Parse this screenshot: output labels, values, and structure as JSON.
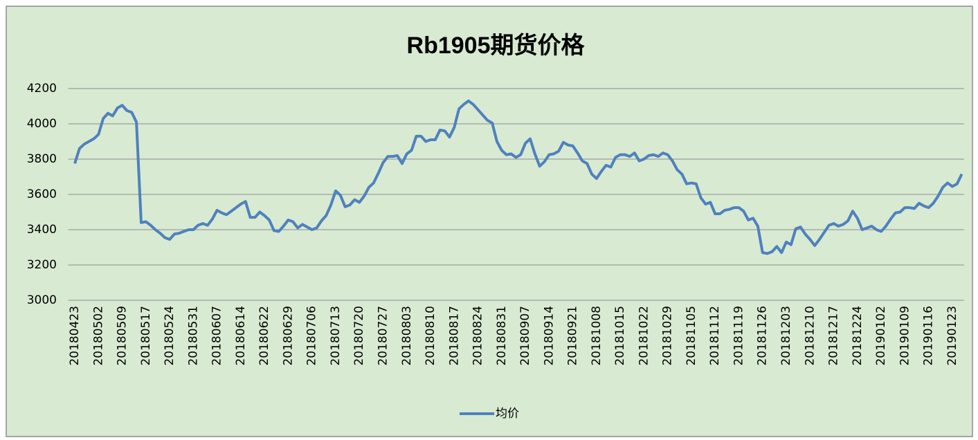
{
  "chart_data": {
    "type": "line",
    "title": "Rb1905期货价格",
    "categories": [
      "20180423",
      null,
      null,
      null,
      null,
      "20180502",
      null,
      null,
      null,
      null,
      "20180509",
      null,
      null,
      null,
      null,
      "20180517",
      null,
      null,
      null,
      null,
      "20180524",
      null,
      null,
      null,
      null,
      "20180531",
      null,
      null,
      null,
      null,
      "20180607",
      null,
      null,
      null,
      null,
      "20180614",
      null,
      null,
      null,
      null,
      "20180622",
      null,
      null,
      null,
      null,
      "20180629",
      null,
      null,
      null,
      null,
      "20180706",
      null,
      null,
      null,
      null,
      "20180713",
      null,
      null,
      null,
      null,
      "20180720",
      null,
      null,
      null,
      null,
      "20180727",
      null,
      null,
      null,
      null,
      "20180803",
      null,
      null,
      null,
      null,
      "20180810",
      null,
      null,
      null,
      null,
      "20180817",
      null,
      null,
      null,
      null,
      "20180824",
      null,
      null,
      null,
      null,
      "20180831",
      null,
      null,
      null,
      null,
      "20180907",
      null,
      null,
      null,
      null,
      "20180914",
      null,
      null,
      null,
      null,
      "20180921",
      null,
      null,
      null,
      null,
      "20181008",
      null,
      null,
      null,
      null,
      "20181015",
      null,
      null,
      null,
      null,
      "20181022",
      null,
      null,
      null,
      null,
      "20181029",
      null,
      null,
      null,
      null,
      "20181105",
      null,
      null,
      null,
      null,
      "20181112",
      null,
      null,
      null,
      null,
      "20181119",
      null,
      null,
      null,
      null,
      "20181126",
      null,
      null,
      null,
      null,
      "20181203",
      null,
      null,
      null,
      null,
      "20181210",
      null,
      null,
      null,
      null,
      "20181217",
      null,
      null,
      null,
      null,
      "20181224",
      null,
      null,
      null,
      null,
      "20190102",
      null,
      null,
      null,
      null,
      "20190109",
      null,
      null,
      null,
      null,
      "20190116",
      null,
      null,
      null,
      null,
      "20190123",
      null,
      null
    ],
    "series": [
      {
        "name": "均价",
        "color": "#4f81bd",
        "values": [
          3775,
          3860,
          3885,
          3900,
          3915,
          3940,
          4030,
          4060,
          4045,
          4090,
          4105,
          4075,
          4065,
          4010,
          3440,
          3445,
          3425,
          3400,
          3380,
          3355,
          3345,
          3375,
          3380,
          3390,
          3400,
          3400,
          3425,
          3435,
          3425,
          3460,
          3510,
          3495,
          3485,
          3505,
          3525,
          3545,
          3560,
          3470,
          3470,
          3500,
          3480,
          3455,
          3395,
          3390,
          3420,
          3455,
          3445,
          3410,
          3430,
          3415,
          3400,
          3410,
          3450,
          3480,
          3540,
          3620,
          3595,
          3530,
          3540,
          3570,
          3555,
          3590,
          3640,
          3665,
          3720,
          3780,
          3815,
          3815,
          3820,
          3775,
          3830,
          3850,
          3930,
          3930,
          3900,
          3910,
          3910,
          3965,
          3960,
          3925,
          3980,
          4085,
          4110,
          4130,
          4110,
          4080,
          4050,
          4020,
          4005,
          3900,
          3850,
          3825,
          3830,
          3810,
          3825,
          3890,
          3915,
          3830,
          3760,
          3785,
          3825,
          3830,
          3845,
          3895,
          3880,
          3875,
          3835,
          3790,
          3775,
          3715,
          3690,
          3730,
          3765,
          3755,
          3810,
          3825,
          3825,
          3815,
          3835,
          3790,
          3800,
          3820,
          3825,
          3815,
          3835,
          3825,
          3790,
          3740,
          3715,
          3660,
          3665,
          3660,
          3580,
          3545,
          3555,
          3490,
          3490,
          3510,
          3515,
          3525,
          3525,
          3505,
          3455,
          3465,
          3420,
          3270,
          3265,
          3275,
          3305,
          3270,
          3330,
          3315,
          3405,
          3415,
          3375,
          3345,
          3310,
          3345,
          3385,
          3425,
          3435,
          3420,
          3430,
          3450,
          3505,
          3465,
          3400,
          3410,
          3420,
          3400,
          3390,
          3420,
          3460,
          3495,
          3500,
          3525,
          3525,
          3520,
          3550,
          3535,
          3525,
          3550,
          3590,
          3640,
          3665,
          3645,
          3660,
          3715
        ]
      }
    ],
    "ylim": [
      3000,
      4200
    ],
    "yticks": [
      3000,
      3200,
      3400,
      3600,
      3800,
      4000,
      4200
    ],
    "grid": true,
    "legend": "bottom"
  }
}
